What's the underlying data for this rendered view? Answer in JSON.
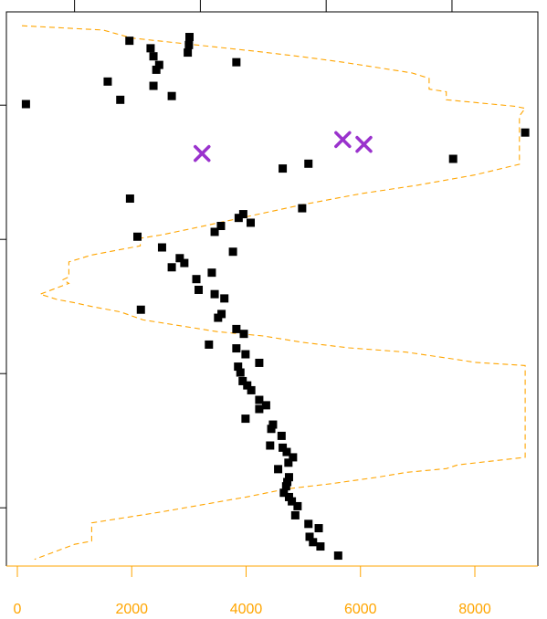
{
  "chart_data": {
    "type": "scatter",
    "title": "",
    "xlabel": "",
    "ylabel": "",
    "xlim": [
      -40,
      8880
    ],
    "ylim": [
      0,
      1
    ],
    "grid": false,
    "bottom_axis": {
      "ticks": [
        0,
        2000,
        4000,
        6000,
        8000
      ],
      "labels": [
        "0",
        "2000",
        "4000",
        "6000",
        "8000"
      ],
      "color": "#FFA500"
    },
    "top_axis": {
      "ticks": [
        1000,
        3200,
        5400,
        7600
      ],
      "labels": []
    },
    "left_axis": {
      "ticks": [
        0.1,
        0.35,
        0.6,
        0.85
      ],
      "labels": []
    },
    "series": [
      {
        "kind": "points",
        "marker": "square",
        "color": "#000000",
        "points": [
          [
            1960,
            0.97
          ],
          [
            3010,
            0.977
          ],
          [
            3000,
            0.962
          ],
          [
            2330,
            0.956
          ],
          [
            2980,
            0.948
          ],
          [
            2380,
            0.941
          ],
          [
            3830,
            0.93
          ],
          [
            2480,
            0.925
          ],
          [
            2430,
            0.916
          ],
          [
            1580,
            0.894
          ],
          [
            2380,
            0.886
          ],
          [
            2700,
            0.867
          ],
          [
            1800,
            0.86
          ],
          [
            150,
            0.852
          ],
          [
            8880,
            0.799
          ],
          [
            7620,
            0.75
          ],
          [
            5090,
            0.741
          ],
          [
            4640,
            0.732
          ],
          [
            1970,
            0.676
          ],
          [
            4980,
            0.658
          ],
          [
            3950,
            0.647
          ],
          [
            3870,
            0.64
          ],
          [
            4080,
            0.631
          ],
          [
            3560,
            0.625
          ],
          [
            3450,
            0.614
          ],
          [
            2100,
            0.605
          ],
          [
            2530,
            0.585
          ],
          [
            3770,
            0.577
          ],
          [
            2840,
            0.565
          ],
          [
            2920,
            0.556
          ],
          [
            2700,
            0.548
          ],
          [
            3400,
            0.538
          ],
          [
            3130,
            0.526
          ],
          [
            3170,
            0.506
          ],
          [
            3450,
            0.498
          ],
          [
            3620,
            0.49
          ],
          [
            2160,
            0.469
          ],
          [
            3570,
            0.461
          ],
          [
            3510,
            0.454
          ],
          [
            3830,
            0.433
          ],
          [
            3960,
            0.424
          ],
          [
            3350,
            0.404
          ],
          [
            3830,
            0.397
          ],
          [
            3990,
            0.386
          ],
          [
            4230,
            0.37
          ],
          [
            3860,
            0.363
          ],
          [
            3900,
            0.352
          ],
          [
            3940,
            0.336
          ],
          [
            4020,
            0.328
          ],
          [
            4090,
            0.319
          ],
          [
            4230,
            0.301
          ],
          [
            4350,
            0.291
          ],
          [
            4230,
            0.284
          ],
          [
            3990,
            0.266
          ],
          [
            4470,
            0.255
          ],
          [
            4440,
            0.247
          ],
          [
            4620,
            0.234
          ],
          [
            4420,
            0.216
          ],
          [
            4640,
            0.212
          ],
          [
            4710,
            0.204
          ],
          [
            4820,
            0.194
          ],
          [
            4740,
            0.184
          ],
          [
            4560,
            0.172
          ],
          [
            4750,
            0.157
          ],
          [
            4720,
            0.148
          ],
          [
            4700,
            0.14
          ],
          [
            4660,
            0.128
          ],
          [
            4750,
            0.12
          ],
          [
            4800,
            0.112
          ],
          [
            4900,
            0.103
          ],
          [
            4860,
            0.086
          ],
          [
            5090,
            0.07
          ],
          [
            5270,
            0.062
          ],
          [
            5110,
            0.046
          ],
          [
            5170,
            0.036
          ],
          [
            5300,
            0.028
          ],
          [
            5610,
            0.011
          ]
        ]
      },
      {
        "kind": "points",
        "marker": "x",
        "color": "#9A32CD",
        "points": [
          [
            3230,
            0.76
          ],
          [
            5690,
            0.786
          ],
          [
            6060,
            0.777
          ]
        ]
      },
      {
        "kind": "line",
        "style": "dashed",
        "color": "#FFA500",
        "points": [
          [
            80,
            0.998
          ],
          [
            1500,
            0.99
          ],
          [
            2000,
            0.975
          ],
          [
            2800,
            0.966
          ],
          [
            3500,
            0.958
          ],
          [
            4200,
            0.95
          ],
          [
            5000,
            0.94
          ],
          [
            5700,
            0.93
          ],
          [
            6300,
            0.92
          ],
          [
            6900,
            0.91
          ],
          [
            7200,
            0.9
          ],
          [
            7200,
            0.88
          ],
          [
            7500,
            0.875
          ],
          [
            7500,
            0.86
          ],
          [
            8700,
            0.848
          ],
          [
            8880,
            0.844
          ],
          [
            8780,
            0.83
          ],
          [
            8780,
            0.74
          ],
          [
            8700,
            0.738
          ],
          [
            8000,
            0.72
          ],
          [
            7000,
            0.701
          ],
          [
            6000,
            0.685
          ],
          [
            5000,
            0.665
          ],
          [
            4000,
            0.642
          ],
          [
            3000,
            0.619
          ],
          [
            2500,
            0.608
          ],
          [
            2150,
            0.602
          ],
          [
            2150,
            0.588
          ],
          [
            1900,
            0.583
          ],
          [
            1300,
            0.571
          ],
          [
            900,
            0.558
          ],
          [
            900,
            0.53
          ],
          [
            800,
            0.525
          ],
          [
            900,
            0.518
          ],
          [
            400,
            0.498
          ],
          [
            700,
            0.488
          ],
          [
            1000,
            0.482
          ],
          [
            1300,
            0.475
          ],
          [
            1800,
            0.465
          ],
          [
            2200,
            0.45
          ],
          [
            2800,
            0.44
          ],
          [
            3500,
            0.428
          ],
          [
            4300,
            0.42
          ],
          [
            5000,
            0.408
          ],
          [
            5800,
            0.398
          ],
          [
            6800,
            0.39
          ],
          [
            7700,
            0.376
          ],
          [
            8000,
            0.371
          ],
          [
            8880,
            0.365
          ],
          [
            8880,
            0.194
          ],
          [
            7700,
            0.18
          ],
          [
            7500,
            0.173
          ],
          [
            6800,
            0.166
          ],
          [
            6300,
            0.157
          ],
          [
            5500,
            0.145
          ],
          [
            4700,
            0.135
          ],
          [
            4000,
            0.12
          ],
          [
            3300,
            0.107
          ],
          [
            2500,
            0.092
          ],
          [
            1900,
            0.082
          ],
          [
            1300,
            0.072
          ],
          [
            1300,
            0.038
          ],
          [
            1000,
            0.032
          ],
          [
            600,
            0.016
          ],
          [
            300,
            0.004
          ]
        ]
      }
    ]
  }
}
